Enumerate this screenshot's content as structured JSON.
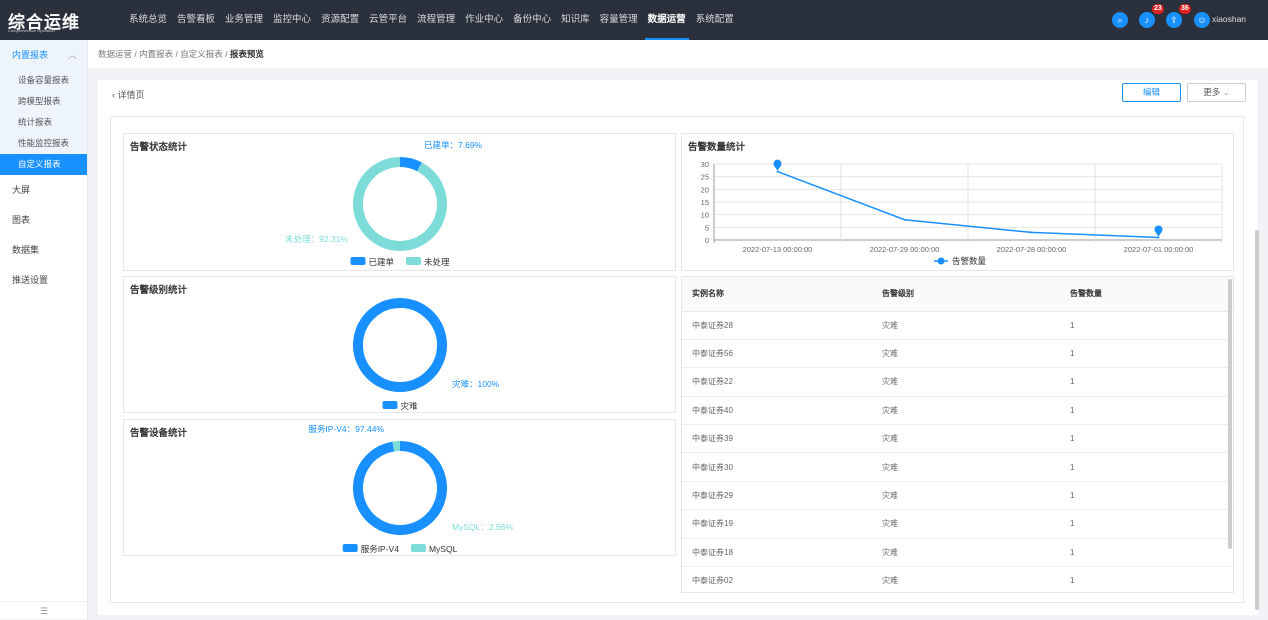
{
  "header": {
    "logo": "综合运维",
    "logo_sub": "Comprehensive Operation",
    "nav": [
      "系统总览",
      "告警看板",
      "业务管理",
      "监控中心",
      "资源配置",
      "云管平台",
      "流程管理",
      "作业中心",
      "备份中心",
      "知识库",
      "容量管理",
      "数据运营",
      "系统配置"
    ],
    "active_nav": "数据运营",
    "alarm_count": "23",
    "notice_count": "36",
    "username": "xiaoshan"
  },
  "sidebar": {
    "group": "内置报表",
    "sub_items": [
      "设备容量报表",
      "跨模型报表",
      "统计报表",
      "性能监控报表",
      "自定义报表"
    ],
    "selected": "自定义报表",
    "items": [
      "大屏",
      "图表",
      "数据集",
      "推送设置"
    ],
    "footer_icon": "collapse-icon"
  },
  "breadcrumb": [
    "数据运营",
    "内置报表",
    "自定义报表",
    "报表预览"
  ],
  "toolbar": {
    "back": "详情页",
    "edit": "编辑",
    "more": "更多"
  },
  "colors": {
    "primary": "#1890ff",
    "secondary": "#7ddcd8",
    "topbar": "#2a313c"
  },
  "charts": [
    {
      "type": "pie",
      "title": "告警状态统计",
      "slices": [
        {
          "name": "已建单",
          "value": 7.69,
          "label": "已建单：7.69%"
        },
        {
          "name": "未处理",
          "value": 92.31,
          "label": "未处理：92.31%"
        }
      ],
      "legend": [
        "已建单",
        "未处理"
      ]
    },
    {
      "type": "pie",
      "title": "告警级别统计",
      "slices": [
        {
          "name": "灾难",
          "value": 100,
          "label": "灾难：100%"
        }
      ],
      "legend": [
        "灾难"
      ]
    },
    {
      "type": "pie",
      "title": "告警设备统计",
      "slices": [
        {
          "name": "服务IP-V4",
          "value": 97.44,
          "label": "服务IP-V4：97.44%"
        },
        {
          "name": "MySQL",
          "value": 2.56,
          "label": "MySQL：2.56%"
        }
      ],
      "legend": [
        "服务IP-V4",
        "MySQL"
      ]
    }
  ],
  "chart_data": {
    "type": "line",
    "title": "告警数量统计",
    "categories": [
      "2022-07-13 00:00:00",
      "2022-07-29 00:00:00",
      "2022-07-28 00:00:00",
      "2022-07-01 00:00:00"
    ],
    "series": [
      {
        "name": "告警数量",
        "values": [
          27,
          8,
          3,
          1
        ]
      }
    ],
    "ylim": [
      0,
      30
    ],
    "yticks": [
      "0",
      "5",
      "10",
      "15",
      "20",
      "25",
      "30"
    ],
    "grid": true,
    "legend": "bottom",
    "markers": [
      "max",
      "min"
    ]
  },
  "table": {
    "columns": [
      "实例名称",
      "告警级别",
      "告警数量"
    ],
    "rows": [
      [
        "中泰证券28",
        "灾难",
        "1"
      ],
      [
        "中泰证券56",
        "灾难",
        "1"
      ],
      [
        "中泰证券22",
        "灾难",
        "1"
      ],
      [
        "中泰证券40",
        "灾难",
        "1"
      ],
      [
        "中泰证券39",
        "灾难",
        "1"
      ],
      [
        "中泰证券30",
        "灾难",
        "1"
      ],
      [
        "中泰证券29",
        "灾难",
        "1"
      ],
      [
        "中泰证券19",
        "灾难",
        "1"
      ],
      [
        "中泰证券18",
        "灾难",
        "1"
      ],
      [
        "中泰证券02",
        "灾难",
        "1"
      ]
    ]
  }
}
